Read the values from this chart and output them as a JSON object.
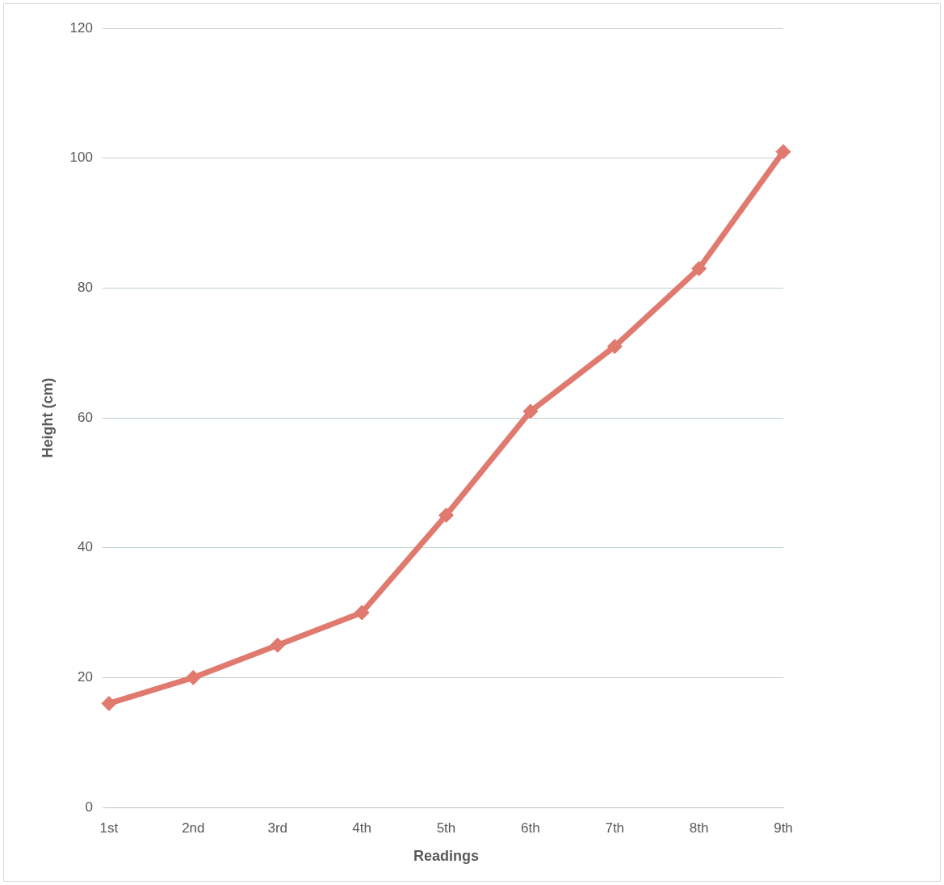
{
  "chart_data": {
    "type": "line",
    "xlabel": "Readings",
    "ylabel": "Height (cm)",
    "categories": [
      "1st",
      "2nd",
      "3rd",
      "4th",
      "5th",
      "6th",
      "7th",
      "8th",
      "9th"
    ],
    "series": [
      {
        "color": "#e07a6f",
        "values": [
          16,
          20,
          25,
          30,
          45,
          61,
          71,
          83,
          101
        ]
      }
    ],
    "ylim": [
      0,
      120
    ],
    "yticks": [
      0,
      20,
      40,
      60,
      80,
      100,
      120
    ],
    "grid": "y",
    "legend": false,
    "marker": "diamond",
    "line_style": "solid"
  }
}
